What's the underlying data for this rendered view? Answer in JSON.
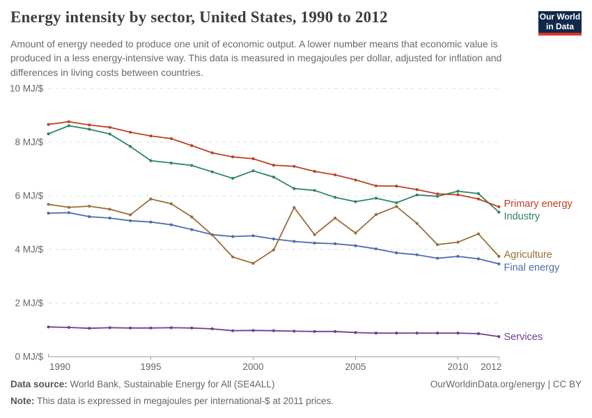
{
  "header": {
    "title": "Energy intensity by sector, United States, 1990 to 2012",
    "subtitle": "Amount of energy needed to produce one unit of economic output. A lower number means that economic value is produced in a less energy-intensive way. This data is measured in megajoules per dollar, adjusted for inflation and differences in living costs between countries.",
    "logo": {
      "line1": "Our World",
      "line2": "in Data",
      "bg_color": "#12294d",
      "stripe_color": "#dd352c"
    }
  },
  "chart_data": {
    "type": "line",
    "title": "Energy intensity by sector, United States, 1990 to 2012",
    "unit": "MJ/$",
    "ylim": [
      0,
      10
    ],
    "grid": "horizontal-dashed",
    "legend_position": "right-of-line-ends",
    "x": [
      1990,
      1991,
      1992,
      1993,
      1994,
      1995,
      1996,
      1997,
      1998,
      1999,
      2000,
      2001,
      2002,
      2003,
      2004,
      2005,
      2006,
      2007,
      2008,
      2009,
      2010,
      2011,
      2012
    ],
    "x_tick_labels": [
      "1990",
      "1995",
      "2000",
      "2005",
      "2010",
      "2012"
    ],
    "y_ticks": [
      0,
      2,
      4,
      6,
      8,
      10
    ],
    "y_tick_labels": [
      "0 MJ/$",
      "2 MJ/$",
      "4 MJ/$",
      "6 MJ/$",
      "8 MJ/$",
      "10 MJ/$"
    ],
    "series": [
      {
        "name": "Primary energy",
        "color": "#BD4026",
        "values": [
          8.66,
          8.76,
          8.64,
          8.55,
          8.37,
          8.23,
          8.13,
          7.87,
          7.6,
          7.45,
          7.38,
          7.14,
          7.1,
          6.91,
          6.78,
          6.59,
          6.37,
          6.36,
          6.23,
          6.07,
          6.04,
          5.88,
          5.59
        ]
      },
      {
        "name": "Industry",
        "color": "#2C8465",
        "values": [
          8.31,
          8.61,
          8.48,
          8.3,
          7.84,
          7.31,
          7.22,
          7.13,
          6.89,
          6.65,
          6.93,
          6.7,
          6.27,
          6.2,
          5.94,
          5.78,
          5.91,
          5.74,
          6.03,
          5.98,
          6.17,
          6.08,
          5.39
        ]
      },
      {
        "name": "Agriculture",
        "color": "#996D39",
        "values": [
          5.68,
          5.57,
          5.61,
          5.5,
          5.29,
          5.88,
          5.7,
          5.21,
          4.54,
          3.72,
          3.48,
          3.98,
          5.56,
          4.55,
          5.17,
          4.61,
          5.3,
          5.6,
          4.97,
          4.18,
          4.27,
          4.58,
          3.74
        ]
      },
      {
        "name": "Final energy",
        "color": "#4C6BAB",
        "values": [
          5.35,
          5.37,
          5.22,
          5.17,
          5.07,
          5.02,
          4.92,
          4.74,
          4.55,
          4.48,
          4.51,
          4.39,
          4.3,
          4.24,
          4.21,
          4.14,
          4.02,
          3.87,
          3.8,
          3.67,
          3.74,
          3.65,
          3.46
        ]
      },
      {
        "name": "Services",
        "color": "#6D3E91",
        "values": [
          1.11,
          1.09,
          1.06,
          1.08,
          1.07,
          1.07,
          1.08,
          1.07,
          1.04,
          0.97,
          0.98,
          0.97,
          0.95,
          0.94,
          0.94,
          0.9,
          0.88,
          0.88,
          0.88,
          0.88,
          0.88,
          0.86,
          0.75
        ]
      }
    ]
  },
  "footer": {
    "source_label": "Data source:",
    "source_text": " World Bank, Sustainable Energy for All (SE4ALL)",
    "credit": "OurWorldinData.org/energy | CC BY",
    "note_label": "Note:",
    "note_text": " This data is expressed in megajoules per international-$ at 2011 prices."
  }
}
